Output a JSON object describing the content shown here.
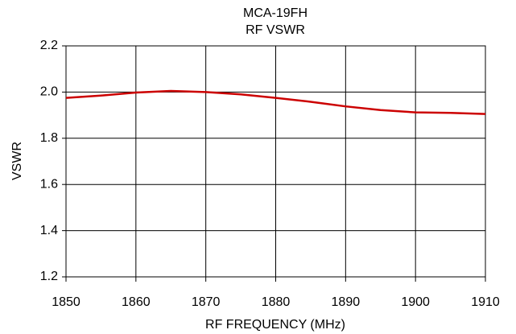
{
  "chart_data": {
    "type": "line",
    "title": "MCA-19FH",
    "subtitle": "RF VSWR",
    "xlabel": "RF FREQUENCY (MHz)",
    "ylabel": "VSWR",
    "x": [
      1850,
      1855,
      1860,
      1865,
      1870,
      1875,
      1880,
      1885,
      1890,
      1895,
      1900,
      1905,
      1910
    ],
    "series": [
      {
        "name": "VSWR",
        "color": "#cc0000",
        "values": [
          1.975,
          1.985,
          1.998,
          2.005,
          2.0,
          1.99,
          1.975,
          1.958,
          1.938,
          1.922,
          1.912,
          1.91,
          1.905
        ]
      }
    ],
    "xlim": [
      1850,
      1910
    ],
    "xticks": [
      1850,
      1860,
      1870,
      1880,
      1890,
      1900,
      1910
    ],
    "ylim": [
      1.2,
      2.2
    ],
    "yticks": [
      1.2,
      1.4,
      1.6,
      1.8,
      {
        "value": 2,
        "label": "2.0"
      },
      2.2
    ],
    "grid": true
  }
}
